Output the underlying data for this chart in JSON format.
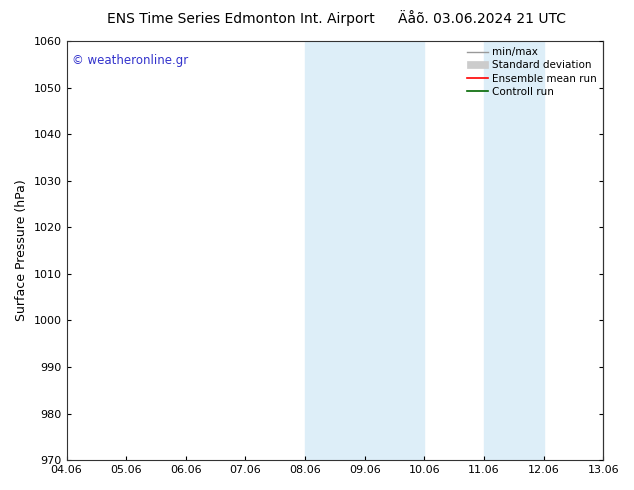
{
  "title_left": "ENS Time Series Edmonton Int. Airport",
  "title_right": "Äåõ. 03.06.2024 21 UTC",
  "ylabel": "Surface Pressure (hPa)",
  "xlim_left": 0,
  "xlim_right": 9.0,
  "ylim_bottom": 970,
  "ylim_top": 1060,
  "yticks": [
    970,
    980,
    990,
    1000,
    1010,
    1020,
    1030,
    1040,
    1050,
    1060
  ],
  "xtick_labels": [
    "04.06",
    "05.06",
    "06.06",
    "07.06",
    "08.06",
    "09.06",
    "10.06",
    "11.06",
    "12.06",
    "13.06"
  ],
  "xtick_positions": [
    0,
    1,
    2,
    3,
    4,
    5,
    6,
    7,
    8,
    9
  ],
  "shaded_bands": [
    {
      "x_start": 4.0,
      "x_end": 5.0,
      "color": "#ddeef8"
    },
    {
      "x_start": 5.0,
      "x_end": 6.0,
      "color": "#ddeef8"
    },
    {
      "x_start": 7.0,
      "x_end": 8.0,
      "color": "#ddeef8"
    }
  ],
  "watermark_text": "© weatheronline.gr",
  "watermark_color": "#3333cc",
  "background_color": "#ffffff",
  "legend_entries": [
    {
      "label": "min/max",
      "color": "#999999",
      "linestyle": "-"
    },
    {
      "label": "Standard deviation",
      "color": "#cccccc",
      "linestyle": "-"
    },
    {
      "label": "Ensemble mean run",
      "color": "#ff0000",
      "linestyle": "-"
    },
    {
      "label": "Controll run",
      "color": "#006600",
      "linestyle": "-"
    }
  ],
  "grid_color": "#aaaaaa",
  "spine_color": "#333333",
  "title_fontsize": 10,
  "label_fontsize": 9,
  "tick_fontsize": 8,
  "watermark_fontsize": 8.5,
  "legend_fontsize": 7.5
}
